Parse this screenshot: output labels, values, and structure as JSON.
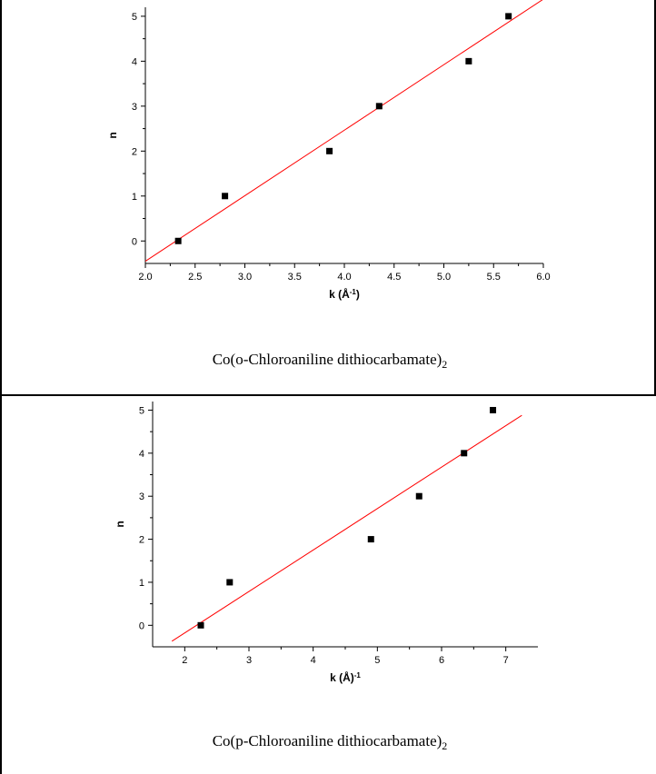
{
  "chart_data": [
    {
      "type": "scatter",
      "xlabel": "k (Å",
      "xlabel_sup": "-1",
      "xlabel_close": ")",
      "ylabel": "n",
      "xlim": [
        2.0,
        6.0
      ],
      "ylim": [
        -0.5,
        5.2
      ],
      "x_ticks": [
        "2.0",
        "2.5",
        "3.0",
        "3.5",
        "4.0",
        "4.5",
        "5.0",
        "5.5",
        "6.0"
      ],
      "y_ticks": [
        "0",
        "1",
        "2",
        "3",
        "4",
        "5"
      ],
      "points": [
        {
          "x": 2.33,
          "y": 0
        },
        {
          "x": 2.8,
          "y": 1
        },
        {
          "x": 3.85,
          "y": 2
        },
        {
          "x": 4.35,
          "y": 3
        },
        {
          "x": 5.25,
          "y": 4
        },
        {
          "x": 5.65,
          "y": 5
        }
      ],
      "fit_line": {
        "x": [
          2.0,
          6.0
        ],
        "y": [
          -0.45,
          5.38
        ],
        "color": "#ff0000"
      },
      "caption": {
        "prefix": "Co(o-Chloroaniline dithiocarbamate)",
        "sub": "2"
      }
    },
    {
      "type": "scatter",
      "xlabel": "k (Å)",
      "xlabel_sup": "-1",
      "xlabel_close": "",
      "ylabel": "n",
      "xlim": [
        1.5,
        7.5
      ],
      "ylim": [
        -0.5,
        5.2
      ],
      "x_ticks": [
        "2",
        "3",
        "4",
        "5",
        "6",
        "7"
      ],
      "y_ticks": [
        "0",
        "1",
        "2",
        "3",
        "4",
        "5"
      ],
      "points": [
        {
          "x": 2.25,
          "y": 0
        },
        {
          "x": 2.7,
          "y": 1
        },
        {
          "x": 4.9,
          "y": 2
        },
        {
          "x": 5.65,
          "y": 3
        },
        {
          "x": 6.35,
          "y": 4
        },
        {
          "x": 6.8,
          "y": 5
        }
      ],
      "fit_line": {
        "x": [
          1.8,
          7.25
        ],
        "y": [
          -0.37,
          4.88
        ],
        "color": "#ff0000"
      },
      "caption": {
        "prefix": "Co(p-Chloroaniline dithiocarbamate)",
        "sub": "2"
      }
    }
  ]
}
